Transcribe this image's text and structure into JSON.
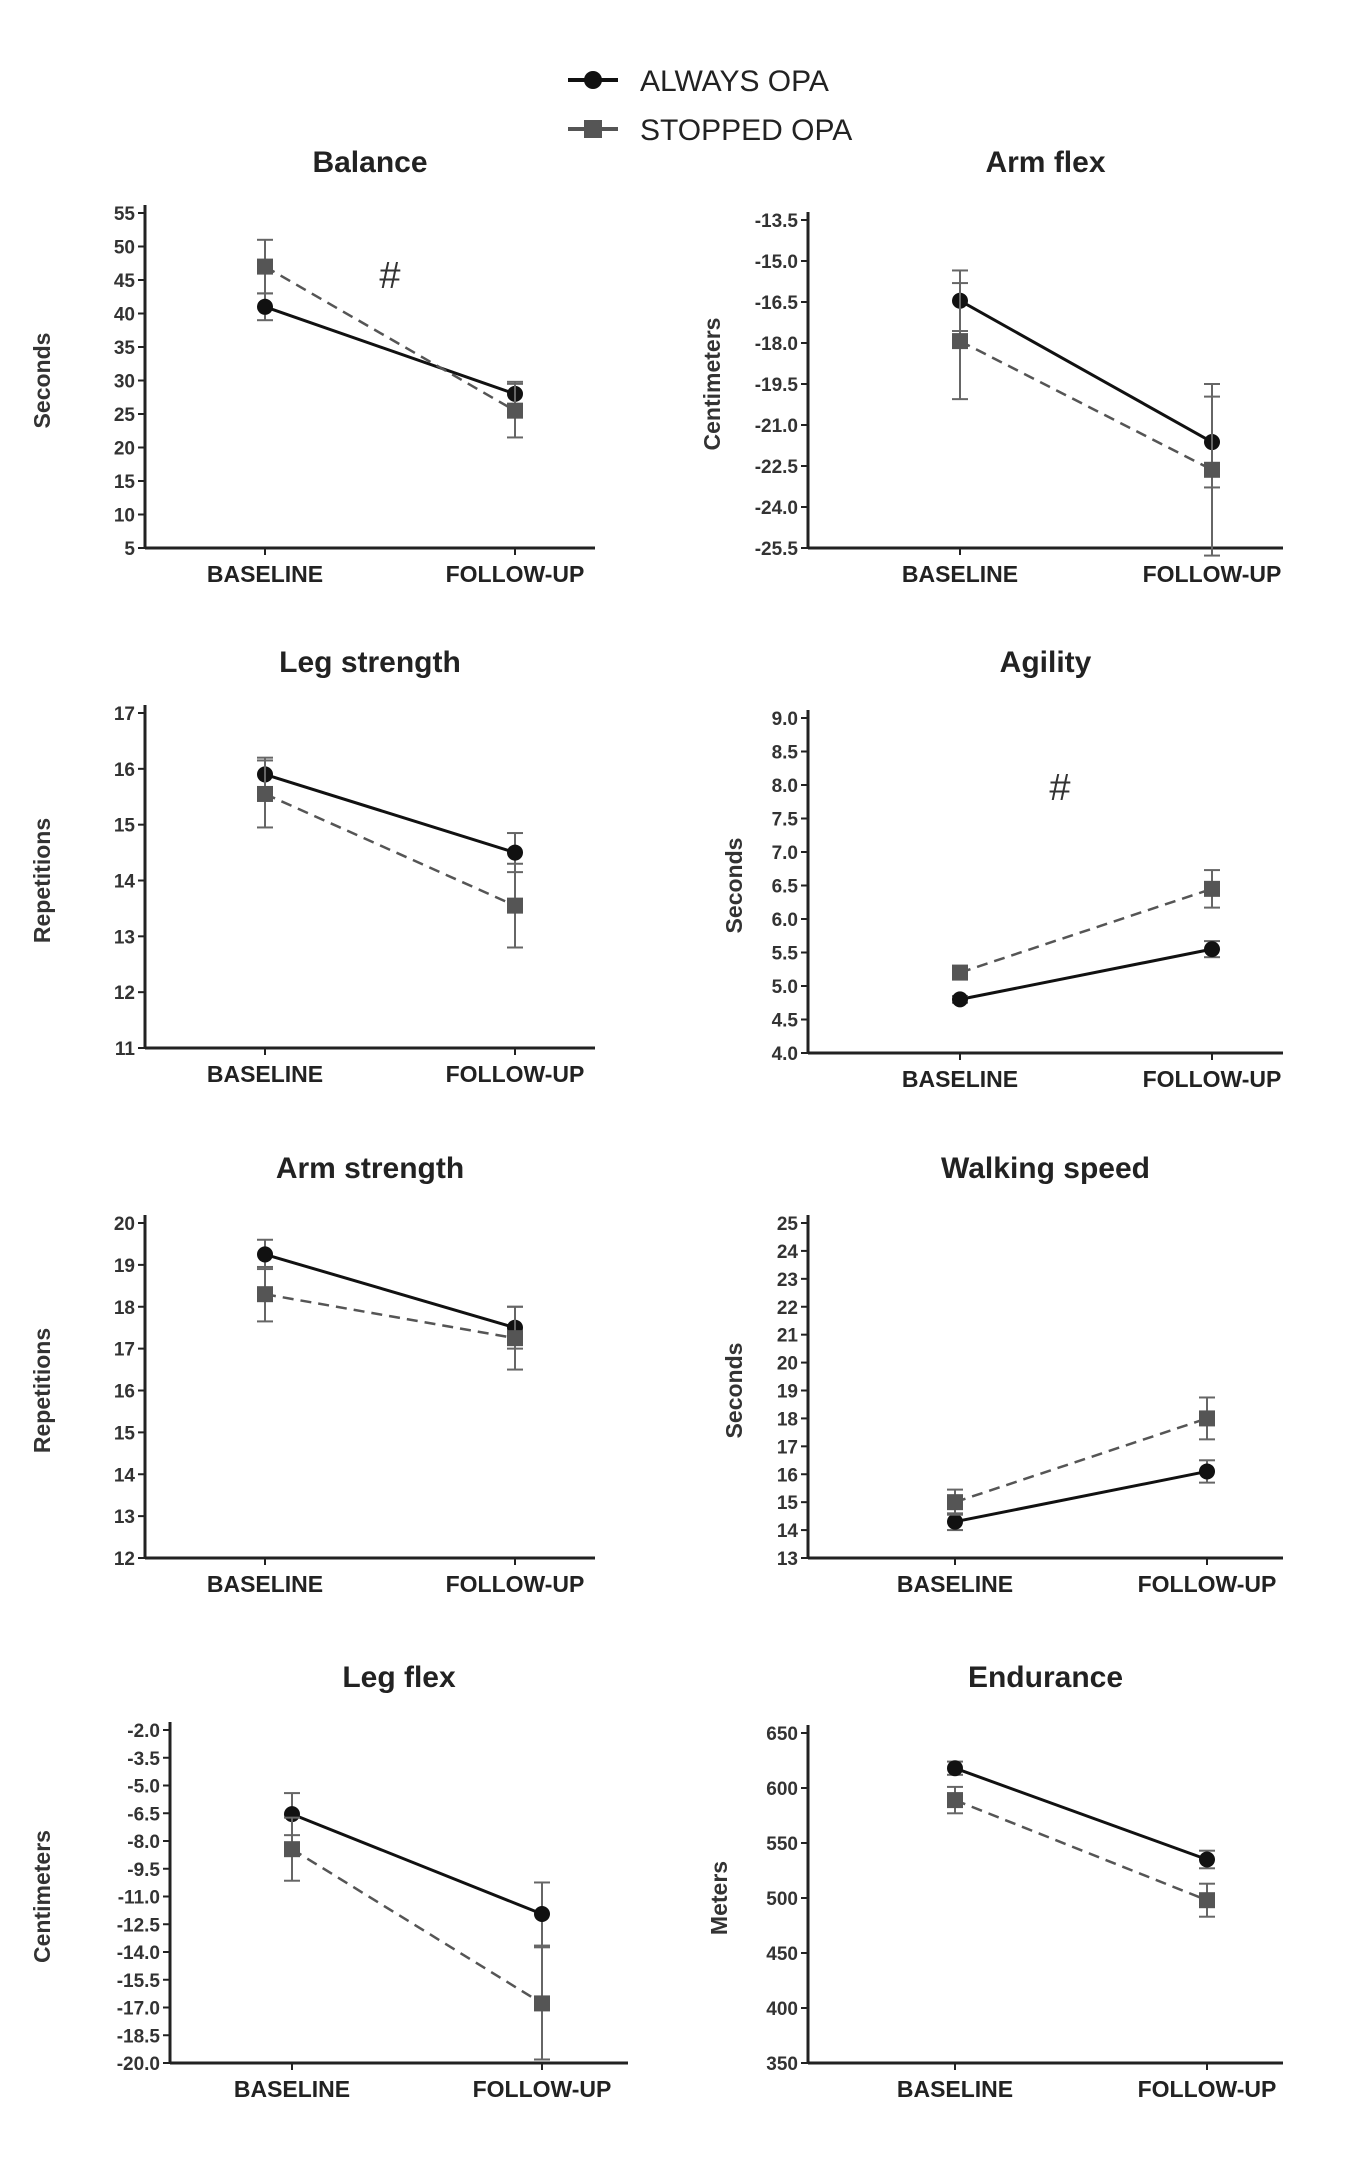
{
  "legend": {
    "items": [
      {
        "label": "ALWAYS OPA",
        "marker": "circle",
        "line": "solid"
      },
      {
        "label": "STOPPED OPA",
        "marker": "square",
        "line": "dashed"
      }
    ]
  },
  "colors": {
    "always": "#111111",
    "stopped": "#555555",
    "errorbar": "#666666"
  },
  "chart_data": [
    {
      "type": "line",
      "title": "Balance",
      "ylabel": "Seconds",
      "xlabel": "",
      "categories": [
        "BASELINE",
        "FOLLOW-UP"
      ],
      "ylim": [
        5,
        55
      ],
      "yticks": [
        "55",
        "50",
        "45",
        "40",
        "35",
        "30",
        "25",
        "20",
        "15",
        "10",
        "5"
      ],
      "annotation": "#",
      "series": [
        {
          "name": "ALWAYS OPA",
          "values": [
            41,
            28
          ],
          "error": [
            2,
            1.8
          ]
        },
        {
          "name": "STOPPED OPA",
          "values": [
            47,
            25.5
          ],
          "error": [
            4,
            4
          ]
        }
      ]
    },
    {
      "type": "line",
      "title": "Arm flex",
      "ylabel": "Centimeters",
      "xlabel": "",
      "categories": [
        "BASELINE",
        "FOLLOW-UP"
      ],
      "ylim": [
        -26,
        -13
      ],
      "yticks": [
        "-13.5",
        "-15.0",
        "-16.5",
        "-18.0",
        "-19.5",
        "-21.0",
        "-22.5",
        "-24.0",
        "-25.5"
      ],
      "annotation": "",
      "series": [
        {
          "name": "ALWAYS OPA",
          "values": [
            -16.2,
            -21.8
          ],
          "error": [
            1.2,
            1.8
          ]
        },
        {
          "name": "STOPPED OPA",
          "values": [
            -17.8,
            -22.9
          ],
          "error": [
            2.3,
            3.4
          ]
        }
      ]
    },
    {
      "type": "line",
      "title": "Leg strength",
      "ylabel": "Repetitions",
      "xlabel": "",
      "categories": [
        "BASELINE",
        "FOLLOW-UP"
      ],
      "ylim": [
        11,
        17
      ],
      "yticks": [
        "17",
        "16",
        "15",
        "14",
        "13",
        "12",
        "11"
      ],
      "annotation": "",
      "series": [
        {
          "name": "ALWAYS OPA",
          "values": [
            15.9,
            14.5
          ],
          "error": [
            0.3,
            0.35
          ]
        },
        {
          "name": "STOPPED OPA",
          "values": [
            15.55,
            13.55
          ],
          "error": [
            0.6,
            0.75
          ]
        }
      ]
    },
    {
      "type": "line",
      "title": "Agility",
      "ylabel": "Seconds",
      "xlabel": "",
      "categories": [
        "BASELINE",
        "FOLLOW-UP"
      ],
      "ylim": [
        4.0,
        9.0
      ],
      "yticks": [
        "9.0",
        "8.5",
        "8.0",
        "7.5",
        "7.0",
        "6.5",
        "6.0",
        "5.5",
        "5.0",
        "4.5",
        "4.0"
      ],
      "annotation": "#",
      "series": [
        {
          "name": "ALWAYS OPA",
          "values": [
            4.8,
            5.55
          ],
          "error": [
            0.05,
            0.12
          ]
        },
        {
          "name": "STOPPED OPA",
          "values": [
            5.2,
            6.45
          ],
          "error": [
            0.1,
            0.28
          ]
        }
      ]
    },
    {
      "type": "line",
      "title": "Arm strength",
      "ylabel": "Repetitions",
      "xlabel": "",
      "categories": [
        "BASELINE",
        "FOLLOW-UP"
      ],
      "ylim": [
        12,
        20
      ],
      "yticks": [
        "20",
        "19",
        "18",
        "17",
        "16",
        "15",
        "14",
        "13",
        "12"
      ],
      "annotation": "",
      "series": [
        {
          "name": "ALWAYS OPA",
          "values": [
            19.25,
            17.5
          ],
          "error": [
            0.35,
            0.5
          ]
        },
        {
          "name": "STOPPED OPA",
          "values": [
            18.3,
            17.25
          ],
          "error": [
            0.65,
            0.75
          ]
        }
      ]
    },
    {
      "type": "line",
      "title": "Walking speed",
      "ylabel": "Seconds",
      "xlabel": "",
      "categories": [
        "BASELINE",
        "FOLLOW-UP"
      ],
      "ylim": [
        13,
        25
      ],
      "yticks": [
        "25",
        "24",
        "23",
        "22",
        "21",
        "20",
        "19",
        "18",
        "17",
        "16",
        "15",
        "14",
        "13"
      ],
      "annotation": "",
      "series": [
        {
          "name": "ALWAYS OPA",
          "values": [
            14.3,
            16.1
          ],
          "error": [
            0.3,
            0.4
          ]
        },
        {
          "name": "STOPPED OPA",
          "values": [
            15.0,
            18.0
          ],
          "error": [
            0.45,
            0.75
          ]
        }
      ]
    },
    {
      "type": "line",
      "title": "Leg flex",
      "ylabel": "Centimeters",
      "xlabel": "",
      "categories": [
        "BASELINE",
        "FOLLOW-UP"
      ],
      "ylim": [
        -20,
        -1
      ],
      "yticks": [
        "-2.0",
        "-3.5",
        "-5.0",
        "-6.5",
        "-8.0",
        "-9.5",
        "-11.0",
        "-12.5",
        "-14.0",
        "-15.5",
        "-17.0",
        "-18.5",
        "-20.0"
      ],
      "annotation": "",
      "series": [
        {
          "name": "ALWAYS OPA",
          "values": [
            -5.8,
            -11.5
          ],
          "error": [
            1.2,
            1.8
          ]
        },
        {
          "name": "STOPPED OPA",
          "values": [
            -7.8,
            -16.6
          ],
          "error": [
            1.8,
            3.2
          ]
        }
      ]
    },
    {
      "type": "line",
      "title": "Endurance",
      "ylabel": "Meters",
      "xlabel": "",
      "categories": [
        "BASELINE",
        "FOLLOW-UP"
      ],
      "ylim": [
        350,
        650
      ],
      "yticks": [
        "650",
        "600",
        "550",
        "500",
        "450",
        "400",
        "350"
      ],
      "annotation": "",
      "series": [
        {
          "name": "ALWAYS OPA",
          "values": [
            618,
            535
          ],
          "error": [
            6,
            8
          ]
        },
        {
          "name": "STOPPED OPA",
          "values": [
            589,
            498
          ],
          "error": [
            12,
            15
          ]
        }
      ]
    }
  ]
}
